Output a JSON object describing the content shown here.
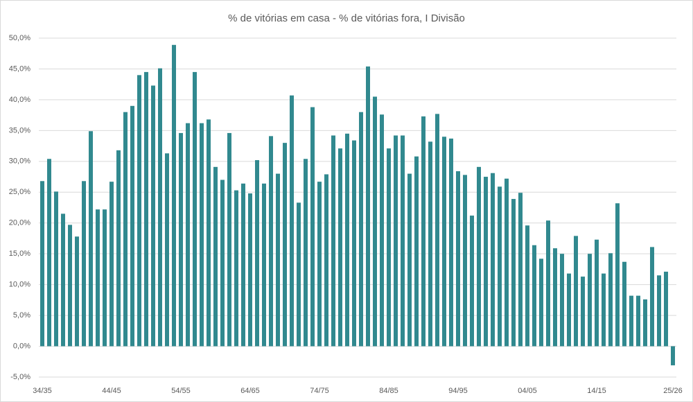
{
  "chart_data": {
    "type": "bar",
    "title": "% de vitórias em casa - % de vitórias fora, I Divisão",
    "categories": [
      "34/35",
      null,
      null,
      null,
      null,
      null,
      null,
      null,
      null,
      null,
      "44/45",
      null,
      null,
      null,
      null,
      null,
      null,
      null,
      null,
      null,
      "54/55",
      null,
      null,
      null,
      null,
      null,
      null,
      null,
      null,
      null,
      "64/65",
      null,
      null,
      null,
      null,
      null,
      null,
      null,
      null,
      null,
      "74/75",
      null,
      null,
      null,
      null,
      null,
      null,
      null,
      null,
      null,
      "84/85",
      null,
      null,
      null,
      null,
      null,
      null,
      null,
      null,
      null,
      "94/95",
      null,
      null,
      null,
      null,
      null,
      null,
      null,
      null,
      null,
      "04/05",
      null,
      null,
      null,
      null,
      null,
      null,
      null,
      null,
      null,
      "14/15",
      null,
      null,
      null,
      null,
      null,
      null,
      null,
      null,
      null,
      null,
      "25/26"
    ],
    "values": [
      26.8,
      30.4,
      25.1,
      21.5,
      19.7,
      17.8,
      26.8,
      34.9,
      22.2,
      22.2,
      26.7,
      31.8,
      38.0,
      39.0,
      44.0,
      44.5,
      42.3,
      45.1,
      31.3,
      48.9,
      34.6,
      36.2,
      44.5,
      36.2,
      36.8,
      29.1,
      27.0,
      34.6,
      25.3,
      26.4,
      24.8,
      30.2,
      26.4,
      34.1,
      28.0,
      33.0,
      40.7,
      23.3,
      30.4,
      38.8,
      26.7,
      27.9,
      34.2,
      32.1,
      34.5,
      33.4,
      38.0,
      45.4,
      40.5,
      37.6,
      32.1,
      34.2,
      34.2,
      28.0,
      30.8,
      37.3,
      33.2,
      37.7,
      34.0,
      33.7,
      28.4,
      27.8,
      21.2,
      29.1,
      27.5,
      28.1,
      25.9,
      27.2,
      23.9,
      24.9,
      19.6,
      16.4,
      14.2,
      20.4,
      15.9,
      15.0,
      11.8,
      17.9,
      11.3,
      15.0,
      17.3,
      11.8,
      15.1,
      23.2,
      13.7,
      8.2,
      8.2,
      7.6,
      16.1,
      11.5,
      12.1,
      -3.1
    ],
    "color": "#31898f",
    "ylim": [
      -5,
      50
    ],
    "yticks": [
      {
        "value": -5,
        "label": "-5,0%"
      },
      {
        "value": 0,
        "label": "0,0%"
      },
      {
        "value": 5,
        "label": "5,0%"
      },
      {
        "value": 10,
        "label": "10,0%"
      },
      {
        "value": 15,
        "label": "15,0%"
      },
      {
        "value": 20,
        "label": "20,0%"
      },
      {
        "value": 25,
        "label": "25,0%"
      },
      {
        "value": 30,
        "label": "30,0%"
      },
      {
        "value": 35,
        "label": "35,0%"
      },
      {
        "value": 40,
        "label": "40,0%"
      },
      {
        "value": 45,
        "label": "45,0%"
      },
      {
        "value": 50,
        "label": "50,0%"
      }
    ],
    "grid": true
  }
}
